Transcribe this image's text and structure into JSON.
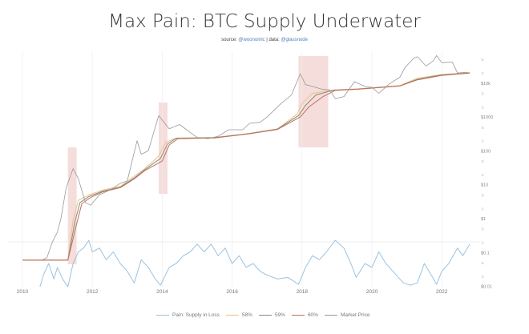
{
  "title": "Max Pain: BTC Supply Underwater",
  "subtitle": {
    "source_label": "source:",
    "source": "@woonomic",
    "sep": "|",
    "data_label": "data:",
    "data": "@glassnode"
  },
  "chart_data": {
    "type": "line",
    "title": "Max Pain: BTC Supply Underwater",
    "x_ticks": [
      "2010",
      "2012",
      "2014",
      "2016",
      "2018",
      "2020",
      "2022"
    ],
    "y_scale": "log",
    "y_ticks": [
      "$0.01",
      "$0.1",
      "$1",
      "$10",
      "$100",
      "$1000",
      "$10k"
    ],
    "y_minor_ticks": [
      "2",
      "5"
    ],
    "grid": "vertical at year ticks",
    "legend_position": "bottom",
    "colors": {
      "pain": "#9cc3e0",
      "s58": "#e8c48a",
      "s59": "#8a8a7a",
      "s60": "#c0705a",
      "price": "#999999",
      "shade": "#f2d4d2"
    },
    "shaded_periods": [
      [
        2011.3,
        2011.55
      ],
      [
        2013.9,
        2014.15
      ],
      [
        2017.9,
        2018.75
      ]
    ],
    "series": [
      {
        "name": "Pain: Supply in Loss",
        "axis": "secondary",
        "points": [
          [
            2010.5,
            0.0
          ],
          [
            2010.6,
            0.15
          ],
          [
            2010.75,
            0.3
          ],
          [
            2010.9,
            0.1
          ],
          [
            2011.0,
            0.25
          ],
          [
            2011.15,
            0.1
          ],
          [
            2011.3,
            0.0
          ],
          [
            2011.45,
            0.3
          ],
          [
            2011.6,
            0.45
          ],
          [
            2011.75,
            0.5
          ],
          [
            2011.9,
            0.6
          ],
          [
            2012.0,
            0.45
          ],
          [
            2012.2,
            0.5
          ],
          [
            2012.4,
            0.35
          ],
          [
            2012.6,
            0.45
          ],
          [
            2012.8,
            0.3
          ],
          [
            2013.0,
            0.2
          ],
          [
            2013.2,
            0.05
          ],
          [
            2013.4,
            0.35
          ],
          [
            2013.6,
            0.25
          ],
          [
            2013.8,
            0.1
          ],
          [
            2013.95,
            0.02
          ],
          [
            2014.2,
            0.25
          ],
          [
            2014.4,
            0.3
          ],
          [
            2014.6,
            0.4
          ],
          [
            2014.8,
            0.45
          ],
          [
            2015.0,
            0.55
          ],
          [
            2015.2,
            0.45
          ],
          [
            2015.4,
            0.55
          ],
          [
            2015.6,
            0.4
          ],
          [
            2015.8,
            0.5
          ],
          [
            2016.0,
            0.3
          ],
          [
            2016.2,
            0.4
          ],
          [
            2016.4,
            0.25
          ],
          [
            2016.6,
            0.3
          ],
          [
            2016.8,
            0.2
          ],
          [
            2017.0,
            0.15
          ],
          [
            2017.3,
            0.1
          ],
          [
            2017.6,
            0.12
          ],
          [
            2017.9,
            0.03
          ],
          [
            2018.1,
            0.25
          ],
          [
            2018.3,
            0.4
          ],
          [
            2018.5,
            0.35
          ],
          [
            2018.7,
            0.45
          ],
          [
            2018.95,
            0.6
          ],
          [
            2019.2,
            0.5
          ],
          [
            2019.4,
            0.3
          ],
          [
            2019.55,
            0.12
          ],
          [
            2019.8,
            0.3
          ],
          [
            2020.0,
            0.25
          ],
          [
            2020.2,
            0.45
          ],
          [
            2020.4,
            0.3
          ],
          [
            2020.6,
            0.2
          ],
          [
            2020.9,
            0.05
          ],
          [
            2021.1,
            0.02
          ],
          [
            2021.3,
            0.05
          ],
          [
            2021.5,
            0.3
          ],
          [
            2021.7,
            0.15
          ],
          [
            2021.85,
            0.03
          ],
          [
            2022.0,
            0.2
          ],
          [
            2022.2,
            0.3
          ],
          [
            2022.45,
            0.5
          ],
          [
            2022.6,
            0.4
          ],
          [
            2022.8,
            0.55
          ]
        ]
      },
      {
        "name": "58%",
        "points": [
          [
            2010.0,
            0.06
          ],
          [
            2011.3,
            0.06
          ],
          [
            2011.45,
            0.9
          ],
          [
            2011.6,
            3.5
          ],
          [
            2011.9,
            5
          ],
          [
            2012.3,
            7
          ],
          [
            2012.8,
            9
          ],
          [
            2013.2,
            18
          ],
          [
            2013.5,
            30
          ],
          [
            2013.9,
            70
          ],
          [
            2014.1,
            180
          ],
          [
            2014.4,
            240
          ],
          [
            2015.5,
            250
          ],
          [
            2016.5,
            330
          ],
          [
            2017.3,
            450
          ],
          [
            2017.85,
            1200
          ],
          [
            2018.0,
            2500
          ],
          [
            2018.3,
            5000
          ],
          [
            2018.9,
            6300
          ],
          [
            2019.6,
            6800
          ],
          [
            2020.8,
            8500
          ],
          [
            2021.3,
            14000
          ],
          [
            2022.0,
            18000
          ],
          [
            2022.8,
            20500
          ]
        ]
      },
      {
        "name": "59%",
        "points": [
          [
            2010.0,
            0.06
          ],
          [
            2011.3,
            0.06
          ],
          [
            2011.5,
            0.8
          ],
          [
            2011.65,
            3
          ],
          [
            2011.9,
            4.5
          ],
          [
            2012.3,
            6.5
          ],
          [
            2012.8,
            8.5
          ],
          [
            2013.2,
            16
          ],
          [
            2013.5,
            28
          ],
          [
            2013.95,
            60
          ],
          [
            2014.15,
            160
          ],
          [
            2014.4,
            235
          ],
          [
            2015.5,
            245
          ],
          [
            2016.5,
            325
          ],
          [
            2017.3,
            440
          ],
          [
            2017.9,
            1100
          ],
          [
            2018.1,
            2200
          ],
          [
            2018.4,
            4500
          ],
          [
            2018.9,
            6200
          ],
          [
            2019.6,
            6700
          ],
          [
            2020.8,
            8300
          ],
          [
            2021.3,
            13000
          ],
          [
            2022.0,
            17500
          ],
          [
            2022.8,
            20000
          ]
        ]
      },
      {
        "name": "60%",
        "points": [
          [
            2010.0,
            0.06
          ],
          [
            2011.3,
            0.06
          ],
          [
            2011.55,
            0.7
          ],
          [
            2011.7,
            2.8
          ],
          [
            2011.95,
            4.2
          ],
          [
            2012.3,
            6.2
          ],
          [
            2012.8,
            8.2
          ],
          [
            2013.2,
            15
          ],
          [
            2013.5,
            26
          ],
          [
            2014.0,
            50
          ],
          [
            2014.2,
            150
          ],
          [
            2014.45,
            230
          ],
          [
            2015.5,
            240
          ],
          [
            2016.5,
            320
          ],
          [
            2017.3,
            430
          ],
          [
            2017.95,
            1000
          ],
          [
            2018.2,
            2000
          ],
          [
            2018.6,
            4000
          ],
          [
            2018.95,
            6100
          ],
          [
            2019.6,
            6600
          ],
          [
            2020.8,
            8200
          ],
          [
            2021.3,
            12500
          ],
          [
            2022.0,
            17000
          ],
          [
            2022.8,
            19800
          ]
        ]
      },
      {
        "name": "Market Price",
        "points": [
          [
            2010.55,
            0.06
          ],
          [
            2010.7,
            0.07
          ],
          [
            2010.85,
            0.2
          ],
          [
            2011.0,
            0.4
          ],
          [
            2011.1,
            1
          ],
          [
            2011.25,
            8
          ],
          [
            2011.45,
            30
          ],
          [
            2011.6,
            15
          ],
          [
            2011.8,
            3
          ],
          [
            2011.95,
            2.5
          ],
          [
            2012.2,
            5
          ],
          [
            2012.5,
            7
          ],
          [
            2012.8,
            11
          ],
          [
            2013.0,
            13
          ],
          [
            2013.28,
            200
          ],
          [
            2013.4,
            80
          ],
          [
            2013.6,
            100
          ],
          [
            2013.9,
            1100
          ],
          [
            2014.05,
            700
          ],
          [
            2014.2,
            450
          ],
          [
            2014.5,
            600
          ],
          [
            2014.8,
            350
          ],
          [
            2015.0,
            250
          ],
          [
            2015.3,
            230
          ],
          [
            2015.6,
            270
          ],
          [
            2015.9,
            420
          ],
          [
            2016.3,
            420
          ],
          [
            2016.5,
            650
          ],
          [
            2016.8,
            700
          ],
          [
            2017.0,
            1000
          ],
          [
            2017.4,
            2500
          ],
          [
            2017.7,
            4500
          ],
          [
            2017.95,
            19000
          ],
          [
            2018.1,
            9000
          ],
          [
            2018.3,
            8000
          ],
          [
            2018.6,
            6500
          ],
          [
            2018.8,
            6300
          ],
          [
            2018.95,
            3500
          ],
          [
            2019.2,
            4000
          ],
          [
            2019.5,
            11000
          ],
          [
            2019.8,
            8000
          ],
          [
            2020.0,
            7500
          ],
          [
            2020.2,
            5000
          ],
          [
            2020.5,
            9500
          ],
          [
            2020.8,
            15000
          ],
          [
            2020.95,
            29000
          ],
          [
            2021.2,
            55000
          ],
          [
            2021.3,
            60000
          ],
          [
            2021.55,
            32000
          ],
          [
            2021.75,
            45000
          ],
          [
            2021.85,
            65000
          ],
          [
            2022.0,
            40000
          ],
          [
            2022.3,
            42000
          ],
          [
            2022.45,
            20000
          ],
          [
            2022.7,
            21000
          ],
          [
            2022.8,
            19500
          ]
        ]
      }
    ]
  }
}
